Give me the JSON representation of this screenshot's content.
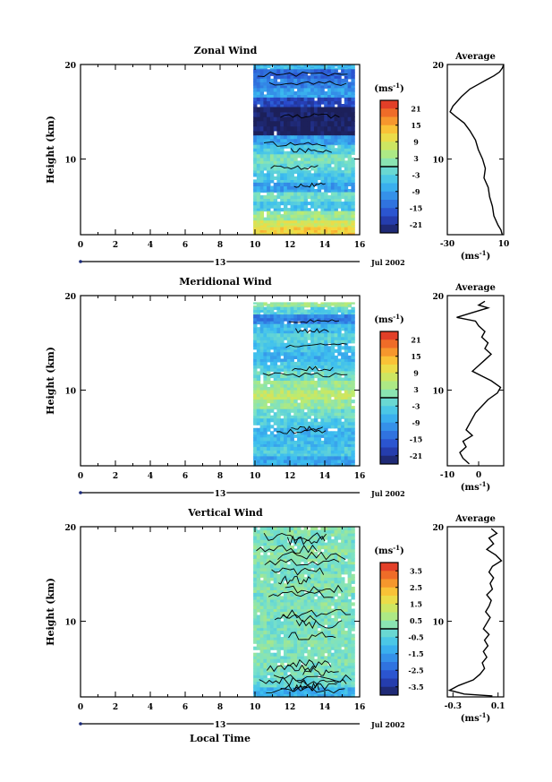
{
  "chart_data": [
    {
      "type": "heatmap",
      "title": "Zonal Wind",
      "ylabel": "Height (km)",
      "unit": "(ms⁻¹)",
      "ylim": [
        2,
        20
      ],
      "yticks": [
        "10",
        "20"
      ],
      "xlim": [
        0,
        16
      ],
      "xticks": [
        "0",
        "2",
        "4",
        "6",
        "8",
        "10",
        "12",
        "14",
        "16"
      ],
      "day_label": "13",
      "date_label": "Jul 2002",
      "data_x_range": [
        9.9,
        15.7
      ],
      "colorbar_ticks": [
        "21",
        "15",
        "9",
        "3",
        "-3",
        "-9",
        "-15",
        "-21"
      ],
      "colorbar_range": [
        -24,
        24
      ],
      "rows": [
        {
          "z": [
            19.5,
            20
          ],
          "v": -6
        },
        {
          "z": [
            18.5,
            19.5
          ],
          "v": -15
        },
        {
          "z": [
            17.5,
            18.5
          ],
          "v": -12
        },
        {
          "z": [
            16.5,
            17.5
          ],
          "v": -9
        },
        {
          "z": [
            15.5,
            16.5
          ],
          "v": -18
        },
        {
          "z": [
            14,
            15.5
          ],
          "v": -24
        },
        {
          "z": [
            12.5,
            14
          ],
          "v": -24
        },
        {
          "z": [
            11.5,
            12.5
          ],
          "v": -9
        },
        {
          "z": [
            10.5,
            11.5
          ],
          "v": -4
        },
        {
          "z": [
            9.5,
            10.5
          ],
          "v": 0
        },
        {
          "z": [
            8.5,
            9.5
          ],
          "v": -2
        },
        {
          "z": [
            7.5,
            8.5
          ],
          "v": -5
        },
        {
          "z": [
            6.5,
            7.5
          ],
          "v": -9
        },
        {
          "z": [
            5.5,
            6.5
          ],
          "v": -1
        },
        {
          "z": [
            4.5,
            5.5
          ],
          "v": -5
        },
        {
          "z": [
            3.5,
            4.5
          ],
          "v": 3
        },
        {
          "z": [
            2.8,
            3.5
          ],
          "v": 8
        },
        {
          "z": [
            2,
            2.8
          ],
          "v": 12
        }
      ],
      "average": {
        "title": "Average",
        "xlabel": "(ms⁻¹)",
        "xlim": [
          -30,
          10
        ],
        "xticks": [
          "-30",
          "10"
        ],
        "ylim": [
          2,
          20
        ],
        "yticks": [
          "10",
          "20"
        ],
        "points": [
          [
            10,
            20
          ],
          [
            9,
            19.6
          ],
          [
            7,
            19.2
          ],
          [
            3,
            18.8
          ],
          [
            -2,
            18.4
          ],
          [
            -8,
            17.9
          ],
          [
            -14,
            17.4
          ],
          [
            -20,
            16.6
          ],
          [
            -26,
            15.6
          ],
          [
            -28,
            15
          ],
          [
            -24,
            14.5
          ],
          [
            -18,
            13.8
          ],
          [
            -14,
            13
          ],
          [
            -10,
            12
          ],
          [
            -8,
            11
          ],
          [
            -5,
            10
          ],
          [
            -3,
            9
          ],
          [
            -4,
            8
          ],
          [
            -1,
            7
          ],
          [
            0,
            6
          ],
          [
            2,
            5
          ],
          [
            3,
            4
          ],
          [
            6,
            3
          ],
          [
            8,
            2.5
          ],
          [
            9,
            2
          ]
        ]
      }
    },
    {
      "type": "heatmap",
      "title": "Meridional Wind",
      "ylabel": "Height (km)",
      "unit": "(ms⁻¹)",
      "ylim": [
        2,
        20
      ],
      "yticks": [
        "10",
        "20"
      ],
      "xlim": [
        0,
        16
      ],
      "xticks": [
        "0",
        "2",
        "4",
        "6",
        "8",
        "10",
        "12",
        "14",
        "16"
      ],
      "day_label": "13",
      "date_label": "Jul 2002",
      "data_x_range": [
        9.9,
        15.7
      ],
      "colorbar_ticks": [
        "21",
        "15",
        "9",
        "3",
        "-3",
        "-9",
        "-15",
        "-21"
      ],
      "colorbar_range": [
        -24,
        24
      ],
      "rows": [
        {
          "z": [
            18.8,
            19.3
          ],
          "v": 3
        },
        {
          "z": [
            18,
            18.8
          ],
          "v": -3
        },
        {
          "z": [
            17,
            18
          ],
          "v": -12
        },
        {
          "z": [
            16,
            17
          ],
          "v": -6
        },
        {
          "z": [
            15,
            16
          ],
          "v": -3
        },
        {
          "z": [
            14,
            15
          ],
          "v": -5
        },
        {
          "z": [
            13,
            14
          ],
          "v": -7
        },
        {
          "z": [
            12,
            13
          ],
          "v": -4
        },
        {
          "z": [
            11,
            12
          ],
          "v": -1
        },
        {
          "z": [
            10,
            11
          ],
          "v": 3
        },
        {
          "z": [
            9,
            10
          ],
          "v": 6
        },
        {
          "z": [
            8,
            9
          ],
          "v": 3
        },
        {
          "z": [
            7,
            8
          ],
          "v": -1
        },
        {
          "z": [
            6,
            7
          ],
          "v": -4
        },
        {
          "z": [
            5,
            6
          ],
          "v": -7
        },
        {
          "z": [
            4,
            5
          ],
          "v": -6
        },
        {
          "z": [
            3,
            4
          ],
          "v": -4
        },
        {
          "z": [
            2,
            3
          ],
          "v": -8
        }
      ],
      "average": {
        "title": "Average",
        "xlabel": "(ms⁻¹)",
        "xlim": [
          -10,
          8
        ],
        "xticks": [
          "-10",
          "0"
        ],
        "ylim": [
          2,
          20
        ],
        "yticks": [
          "10",
          "20"
        ],
        "points": [
          [
            2,
            19.4
          ],
          [
            0,
            19.0
          ],
          [
            3,
            18.7
          ],
          [
            -1,
            18.3
          ],
          [
            -7,
            17.7
          ],
          [
            -1,
            17.3
          ],
          [
            0,
            16.8
          ],
          [
            2,
            16.2
          ],
          [
            1,
            15.6
          ],
          [
            3,
            15.0
          ],
          [
            2,
            14.4
          ],
          [
            4,
            13.8
          ],
          [
            2,
            13.2
          ],
          [
            0,
            12.6
          ],
          [
            -2,
            12.0
          ],
          [
            1,
            11.5
          ],
          [
            4,
            11.0
          ],
          [
            7,
            10.3
          ],
          [
            6,
            9.7
          ],
          [
            3,
            9.0
          ],
          [
            1,
            8.3
          ],
          [
            -1,
            7.6
          ],
          [
            -2,
            7.0
          ],
          [
            -3,
            6.4
          ],
          [
            -4,
            5.8
          ],
          [
            -2,
            5.2
          ],
          [
            -5,
            4.6
          ],
          [
            -4,
            4.0
          ],
          [
            -6,
            3.4
          ],
          [
            -5,
            2.8
          ],
          [
            -3,
            2.2
          ]
        ]
      }
    },
    {
      "type": "heatmap",
      "title": "Vertical Wind",
      "ylabel": "Height (km)",
      "xlabel": "Local Time",
      "unit": "(ms⁻¹)",
      "ylim": [
        2,
        20
      ],
      "yticks": [
        "10",
        "20"
      ],
      "xlim": [
        0,
        16
      ],
      "xticks": [
        "0",
        "2",
        "4",
        "6",
        "8",
        "10",
        "12",
        "14",
        "16"
      ],
      "day_label": "13",
      "date_label": "Jul 2002",
      "data_x_range": [
        9.9,
        15.7
      ],
      "colorbar_ticks": [
        "3.5",
        "2.5",
        "1.5",
        "0.5",
        "-0.5",
        "-1.5",
        "-2.5",
        "-3.5"
      ],
      "colorbar_range": [
        -4,
        4
      ],
      "rows": [
        {
          "z": [
            19,
            20
          ],
          "v": 0.2
        },
        {
          "z": [
            18,
            19
          ],
          "v": 0.0
        },
        {
          "z": [
            17,
            18
          ],
          "v": 0.3
        },
        {
          "z": [
            16,
            17
          ],
          "v": 0.2
        },
        {
          "z": [
            15,
            16
          ],
          "v": 0.0
        },
        {
          "z": [
            14,
            15
          ],
          "v": 0.1
        },
        {
          "z": [
            13,
            14
          ],
          "v": 0.2
        },
        {
          "z": [
            12,
            13
          ],
          "v": 0.0
        },
        {
          "z": [
            11,
            12
          ],
          "v": 0.2
        },
        {
          "z": [
            10,
            11
          ],
          "v": 0.1
        },
        {
          "z": [
            9,
            10
          ],
          "v": 0.0
        },
        {
          "z": [
            8,
            9
          ],
          "v": 0.1
        },
        {
          "z": [
            7,
            8
          ],
          "v": 0.2
        },
        {
          "z": [
            6,
            7
          ],
          "v": 0.0
        },
        {
          "z": [
            5,
            6
          ],
          "v": 0.1
        },
        {
          "z": [
            4,
            5
          ],
          "v": 0.0
        },
        {
          "z": [
            3,
            4
          ],
          "v": -0.3
        },
        {
          "z": [
            2,
            3
          ],
          "v": -1.2
        }
      ],
      "average": {
        "title": "Average",
        "xlabel": "(ms⁻¹)",
        "xlim": [
          -0.35,
          0.15
        ],
        "xticks": [
          "-0.3",
          "0.1"
        ],
        "ylim": [
          2,
          20
        ],
        "yticks": [
          "10",
          "20"
        ],
        "points": [
          [
            0.04,
            19.8
          ],
          [
            0.09,
            19.3
          ],
          [
            0.02,
            18.8
          ],
          [
            0.06,
            18.2
          ],
          [
            0.0,
            17.6
          ],
          [
            0.08,
            17.0
          ],
          [
            0.13,
            16.4
          ],
          [
            0.05,
            15.8
          ],
          [
            0.02,
            15.2
          ],
          [
            0.06,
            14.6
          ],
          [
            0.03,
            14.0
          ],
          [
            0.05,
            13.4
          ],
          [
            0.0,
            12.8
          ],
          [
            0.04,
            12.2
          ],
          [
            0.02,
            11.6
          ],
          [
            -0.01,
            11.0
          ],
          [
            0.03,
            10.4
          ],
          [
            0.0,
            9.8
          ],
          [
            -0.03,
            9.2
          ],
          [
            0.02,
            8.6
          ],
          [
            -0.02,
            8.0
          ],
          [
            0.01,
            7.4
          ],
          [
            -0.03,
            6.8
          ],
          [
            0.0,
            6.2
          ],
          [
            -0.04,
            5.6
          ],
          [
            -0.02,
            5.0
          ],
          [
            -0.06,
            4.4
          ],
          [
            -0.12,
            3.8
          ],
          [
            -0.25,
            3.2
          ],
          [
            -0.33,
            2.7
          ],
          [
            -0.2,
            2.3
          ],
          [
            0.05,
            2.1
          ]
        ]
      }
    }
  ]
}
